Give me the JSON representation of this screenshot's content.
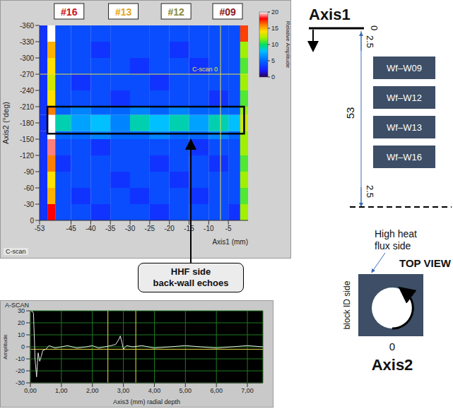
{
  "chart_data": [
    {
      "type": "heatmap",
      "title": "C-scan",
      "x_label": "Axis1 (mm)",
      "y_label": "Axis2 (°deg)",
      "xlim": [
        -53,
        0
      ],
      "xticks": [
        -53,
        -45,
        -40,
        -35,
        -30,
        -25,
        -20,
        -15,
        -10,
        -5
      ],
      "ylim": [
        -360,
        0
      ],
      "yticks": [
        -360,
        -330,
        -300,
        -270,
        -240,
        -210,
        -180,
        -150,
        -120,
        -90,
        -60,
        -30,
        0
      ],
      "x_bins": [
        -53,
        -51,
        -49,
        -45,
        -40,
        -35,
        -30,
        -25,
        -20,
        -15,
        -10,
        -5,
        -2,
        0
      ],
      "y_bins": [
        0,
        -30,
        -60,
        -90,
        -120,
        -150,
        -165,
        -195,
        -210,
        -240,
        -270,
        -300,
        -330,
        -360
      ],
      "cells": [
        [
          3,
          18,
          4,
          4,
          3,
          4,
          4,
          3,
          4,
          4,
          4,
          3,
          12
        ],
        [
          3,
          15,
          4,
          3,
          4,
          4,
          3,
          4,
          4,
          3,
          4,
          4,
          11
        ],
        [
          3,
          14,
          4,
          4,
          4,
          3,
          4,
          4,
          3,
          4,
          4,
          4,
          12
        ],
        [
          3,
          16,
          3,
          4,
          4,
          4,
          4,
          3,
          4,
          4,
          3,
          4,
          11
        ],
        [
          3,
          19,
          4,
          4,
          3,
          4,
          4,
          4,
          4,
          3,
          4,
          4,
          12
        ],
        [
          3,
          20,
          5,
          5,
          6,
          5,
          5,
          6,
          5,
          5,
          6,
          5,
          12
        ],
        [
          3,
          20,
          9,
          7,
          8,
          6,
          9,
          8,
          9,
          7,
          9,
          8,
          13
        ],
        [
          3,
          16,
          5,
          6,
          5,
          5,
          6,
          5,
          6,
          5,
          5,
          5,
          12
        ],
        [
          3,
          14,
          4,
          4,
          4,
          3,
          4,
          4,
          4,
          4,
          3,
          4,
          11
        ],
        [
          3,
          13,
          4,
          3,
          4,
          4,
          4,
          3,
          4,
          4,
          4,
          4,
          12
        ],
        [
          3,
          14,
          4,
          4,
          4,
          4,
          3,
          4,
          4,
          3,
          4,
          4,
          11
        ],
        [
          3,
          15,
          4,
          4,
          3,
          4,
          4,
          4,
          3,
          4,
          4,
          4,
          12
        ],
        [
          3,
          20,
          4,
          4,
          4,
          4,
          4,
          4,
          4,
          4,
          4,
          4,
          17
        ]
      ],
      "colorbar": {
        "label": "Relative Amplitude",
        "range": [
          0,
          20
        ],
        "ticks": [
          0,
          5,
          10,
          15,
          20
        ]
      },
      "specimen_labels": [
        {
          "text": "#16",
          "x": -45.5,
          "color": "#c8141c"
        },
        {
          "text": "#13",
          "x": -31.7,
          "color": "#e8a317"
        },
        {
          "text": "#12",
          "x": -18.3,
          "color": "#8a8a3a"
        },
        {
          "text": "#09",
          "x": -5.2,
          "color": "#8b1a1a"
        }
      ],
      "cursor": {
        "x": -7,
        "y": -270,
        "label": "C-scan 0",
        "color": "#e8e040"
      },
      "annotation": {
        "text": [
          "HHF side",
          "back-wall echoes"
        ],
        "x": [
          -51,
          -1
        ],
        "y": [
          -160,
          -210
        ]
      }
    },
    {
      "type": "line",
      "title": "A-SCAN",
      "x_label": "Axis3 (mm) radial depth",
      "y_label": "Amplitude",
      "xlim": [
        0,
        7.5
      ],
      "xticks": [
        {
          "value": 0,
          "label": "0,00"
        },
        {
          "value": 1,
          "label": "1,00"
        },
        {
          "value": 2,
          "label": "2,00"
        },
        {
          "value": 3,
          "label": "3,00"
        },
        {
          "value": 4,
          "label": "4,00"
        },
        {
          "value": 5,
          "label": "5,00"
        },
        {
          "value": 6,
          "label": "6,00"
        },
        {
          "value": 7,
          "label": "7,00"
        }
      ],
      "ylim": [
        -30,
        30
      ],
      "yticks": [
        -30,
        -20,
        -10,
        0,
        10,
        20,
        30
      ],
      "grid": true,
      "x": [
        0,
        0.05,
        0.1,
        0.15,
        0.2,
        0.25,
        0.3,
        0.35,
        0.4,
        0.5,
        0.6,
        0.8,
        1.0,
        1.2,
        1.5,
        1.8,
        2.0,
        2.2,
        2.4,
        2.6,
        2.75,
        2.85,
        2.9,
        2.95,
        3.0,
        3.1,
        3.3,
        3.6,
        4.0,
        4.5,
        5.0,
        5.5,
        6.0,
        6.5,
        7.0,
        7.5
      ],
      "series": [
        {
          "name": "A-scan",
          "color": "#e8e8e8",
          "values": [
            30,
            30,
            28,
            -10,
            -25,
            -5,
            -12,
            -8,
            -3,
            -2,
            1,
            -1,
            0,
            1,
            -1,
            0,
            1,
            -1,
            0,
            1,
            2,
            6,
            9,
            4,
            -2,
            1,
            0,
            1,
            -1,
            0,
            1,
            0,
            -1,
            0,
            1,
            0
          ]
        }
      ],
      "gates": [
        2.5,
        3.4
      ],
      "level": -2,
      "gate_color": "#e8e040"
    }
  ],
  "diagram": {
    "axis1": {
      "label": "Axis1",
      "zero": 0,
      "top_offset": 2.5,
      "length": 53,
      "bottom_offset": 2.5
    },
    "blocks": [
      "Wf–W09",
      "Wf–W12",
      "Wf–W13",
      "Wf–W16"
    ],
    "top_view": {
      "title": "TOP VIEW",
      "hhf": "High heat flux side",
      "block_id": "block ID side",
      "zero": 0,
      "axis_label": "Axis2"
    }
  }
}
